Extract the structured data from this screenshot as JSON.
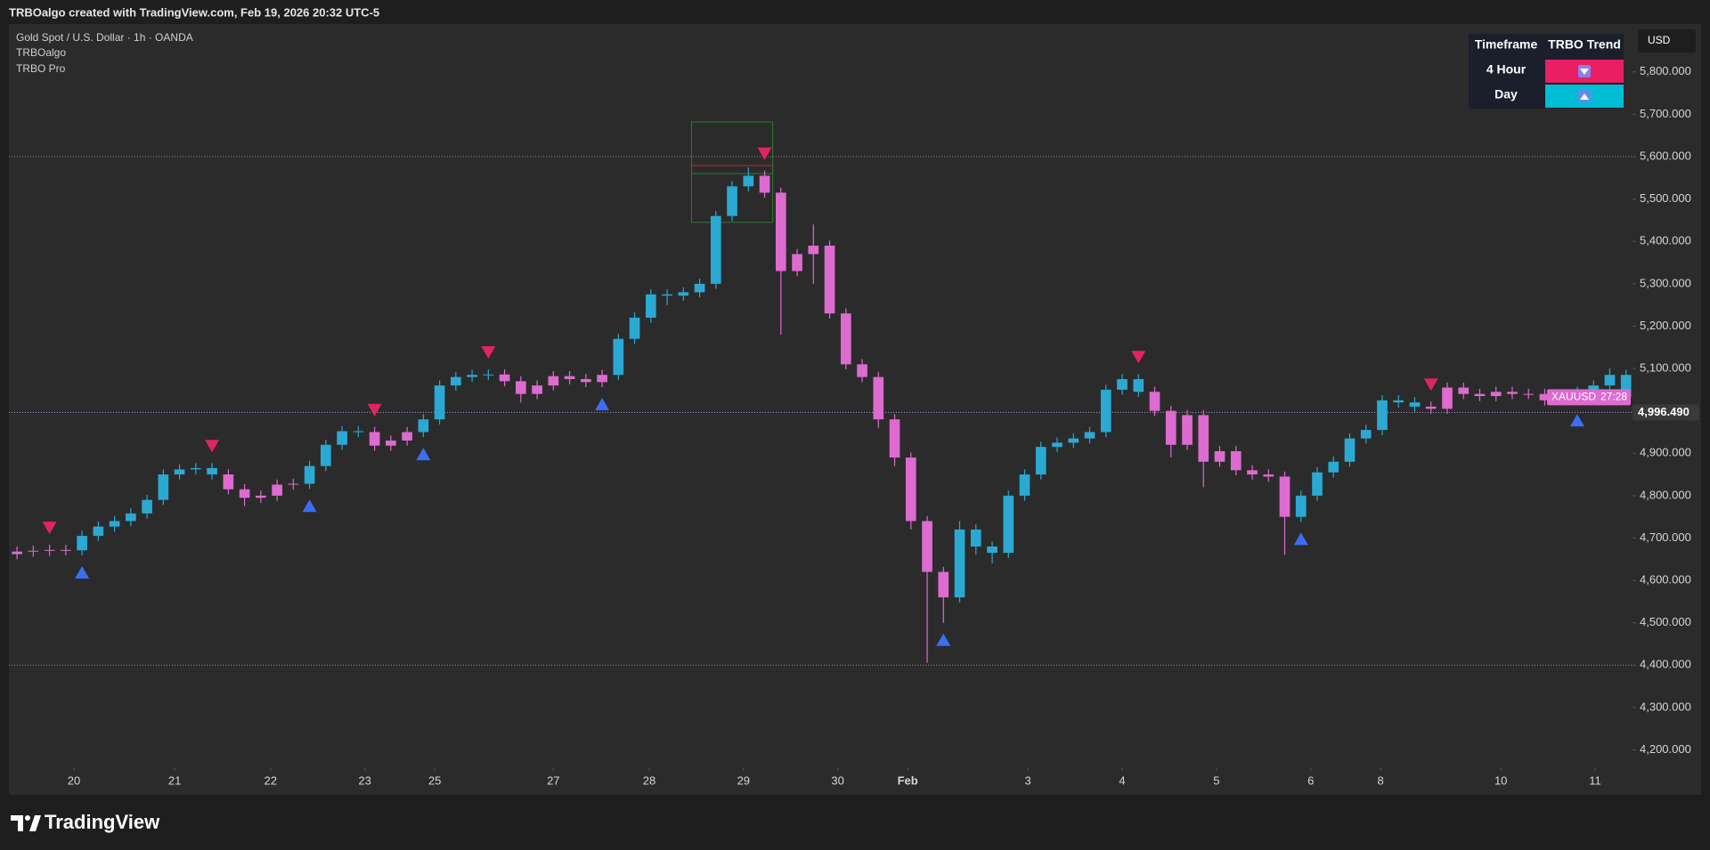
{
  "header": {
    "attribution": "TRBOalgo created with TradingView.com, Feb 19, 2026 20:32 UTC-5",
    "brand": "TradingView"
  },
  "legend": {
    "symbol": "Gold Spot / U.S. Dollar · 1h · OANDA",
    "indicators": [
      "TRBOalgo",
      "TRBO Pro"
    ]
  },
  "table": {
    "header": [
      "Timeframe",
      "TRBO Trend"
    ],
    "rows": [
      {
        "timeframe": "4 Hour",
        "color": "#e91e63"
      },
      {
        "timeframe": "Day",
        "color": "#00bcd4"
      }
    ]
  },
  "chart_data": {
    "type": "candlestick",
    "currency": "USD",
    "ylim": [
      4157,
      5913
    ],
    "xlim": [
      -0.5,
      99.4
    ],
    "yticks": [
      {
        "value": 4200,
        "label": "4,200.000"
      },
      {
        "value": 4300,
        "label": "4,300.000"
      },
      {
        "value": 4400,
        "label": "4,400.000"
      },
      {
        "value": 4500,
        "label": "4,500.000"
      },
      {
        "value": 4600,
        "label": "4,600.000"
      },
      {
        "value": 4700,
        "label": "4,700.000"
      },
      {
        "value": 4800,
        "label": "4,800.000"
      },
      {
        "value": 4900,
        "label": "4,900.000"
      },
      {
        "value": 5000,
        "label": "5,000.000"
      },
      {
        "value": 5100,
        "label": "5,100.000"
      },
      {
        "value": 5200,
        "label": "5,200.000"
      },
      {
        "value": 5300,
        "label": "5,300.000"
      },
      {
        "value": 5400,
        "label": "5,400.000"
      },
      {
        "value": 5500,
        "label": "5,500.000"
      },
      {
        "value": 5600,
        "label": "5,600.000"
      },
      {
        "value": 5700,
        "label": "5,700.000"
      },
      {
        "value": 5800,
        "label": "5,800.000"
      }
    ],
    "xticks": [
      {
        "value": 3.5,
        "label": "20"
      },
      {
        "value": 9.7,
        "label": "21"
      },
      {
        "value": 15.6,
        "label": "22"
      },
      {
        "value": 21.4,
        "label": "23"
      },
      {
        "value": 25.7,
        "label": "25"
      },
      {
        "value": 33.0,
        "label": "27"
      },
      {
        "value": 38.9,
        "label": "28"
      },
      {
        "value": 44.7,
        "label": "29"
      },
      {
        "value": 50.5,
        "label": "30"
      },
      {
        "value": 54.8,
        "label": "Feb"
      },
      {
        "value": 62.2,
        "label": "3"
      },
      {
        "value": 68.0,
        "label": "4"
      },
      {
        "value": 73.8,
        "label": "5"
      },
      {
        "value": 79.6,
        "label": "6"
      },
      {
        "value": 83.9,
        "label": "8"
      },
      {
        "value": 91.3,
        "label": "10"
      },
      {
        "value": 97.1,
        "label": "11"
      }
    ],
    "open": [
      4662,
      4668,
      4670,
      4672,
      4671,
      4705,
      4727,
      4740,
      4758,
      4790,
      4850,
      4862,
      4865,
      4850,
      4815,
      4795,
      4800,
      4826,
      4828,
      4870,
      4920,
      4952,
      4950,
      4918,
      4930,
      4950,
      4980,
      5060,
      5080,
      5085,
      5086,
      5070,
      5040,
      5060,
      5082,
      5075,
      5068,
      5085,
      5170,
      5220,
      5275,
      5272,
      5280,
      5300,
      5460,
      5530,
      5555,
      5515,
      5330,
      5370,
      5390,
      5230,
      5110,
      5080,
      4980,
      4890,
      4740,
      4620,
      4560,
      4720,
      4680,
      4665,
      4800,
      4850,
      4915,
      4925,
      4935,
      4950,
      5050,
      5075,
      5045,
      5000,
      4920,
      4990,
      4880,
      4905,
      4860,
      4850,
      4845,
      4750,
      4800,
      4855,
      4880,
      4935,
      4955,
      5025,
      5020,
      5010,
      5005,
      5055,
      5040,
      5035,
      5045,
      5040,
      5040,
      5025,
      5030,
      5045,
      5060,
      5085
    ],
    "high": [
      4680,
      4682,
      4684,
      4684,
      4717,
      4739,
      4752,
      4770,
      4802,
      4862,
      4874,
      4877,
      4877,
      4862,
      4827,
      4812,
      4838,
      4840,
      4882,
      4932,
      4964,
      4964,
      4962,
      4942,
      4962,
      4992,
      5072,
      5092,
      5097,
      5098,
      5098,
      5082,
      5072,
      5094,
      5094,
      5087,
      5097,
      5182,
      5232,
      5287,
      5287,
      5292,
      5312,
      5472,
      5542,
      5575,
      5567,
      5527,
      5382,
      5440,
      5402,
      5242,
      5122,
      5092,
      4992,
      4902,
      4752,
      4632,
      4740,
      4732,
      4692,
      4812,
      4862,
      4927,
      4937,
      4947,
      4962,
      5062,
      5087,
      5087,
      5057,
      5012,
      5002,
      5002,
      4917,
      4917,
      4872,
      4862,
      4857,
      4812,
      4867,
      4892,
      4947,
      4967,
      5037,
      5037,
      5032,
      5022,
      5067,
      5067,
      5052,
      5057,
      5057,
      5052,
      5052,
      5042,
      5057,
      5072,
      5100,
      5097
    ],
    "low": [
      4650,
      4656,
      4658,
      4659,
      4659,
      4693,
      4715,
      4728,
      4746,
      4778,
      4838,
      4850,
      4838,
      4803,
      4775,
      4783,
      4788,
      4814,
      4816,
      4858,
      4908,
      4938,
      4906,
      4906,
      4918,
      4938,
      4968,
      5048,
      5068,
      5073,
      5058,
      5020,
      5028,
      5048,
      5063,
      5056,
      5056,
      5073,
      5158,
      5208,
      5250,
      5260,
      5268,
      5288,
      5448,
      5518,
      5503,
      5180,
      5318,
      5300,
      5218,
      5098,
      5068,
      4960,
      4870,
      4720,
      4406,
      4500,
      4548,
      4660,
      4640,
      4653,
      4788,
      4838,
      4903,
      4913,
      4923,
      4938,
      5038,
      5033,
      4988,
      4890,
      4908,
      4820,
      4868,
      4848,
      4838,
      4833,
      4660,
      4738,
      4788,
      4843,
      4868,
      4923,
      4943,
      5008,
      4998,
      4993,
      4993,
      5028,
      5023,
      5023,
      5028,
      5028,
      5013,
      5013,
      5018,
      5033,
      5048,
      5020
    ],
    "close": [
      4668,
      4670,
      4672,
      4671,
      4705,
      4727,
      4740,
      4758,
      4790,
      4850,
      4862,
      4865,
      4850,
      4815,
      4795,
      4800,
      4826,
      4828,
      4870,
      4920,
      4952,
      4950,
      4918,
      4930,
      4950,
      4980,
      5060,
      5080,
      5085,
      5086,
      5070,
      5040,
      5060,
      5082,
      5075,
      5068,
      5085,
      5170,
      5220,
      5275,
      5272,
      5280,
      5300,
      5460,
      5530,
      5555,
      5515,
      5330,
      5370,
      5390,
      5230,
      5110,
      5080,
      4980,
      4890,
      4740,
      4620,
      4560,
      4720,
      4680,
      4665,
      4800,
      4850,
      4915,
      4925,
      4935,
      4950,
      5050,
      5075,
      5045,
      5000,
      4920,
      4990,
      4880,
      4905,
      4860,
      4850,
      4845,
      4750,
      4800,
      4855,
      4880,
      4935,
      4955,
      5025,
      5020,
      5010,
      5005,
      5055,
      5040,
      5035,
      5045,
      5040,
      5040,
      5025,
      5030,
      5045,
      5060,
      5085,
      5032
    ],
    "trend_segments": [
      {
        "from": 0,
        "to": 3,
        "color": "#dd6bd0"
      },
      {
        "from": 4,
        "to": 12,
        "color": "#2ba9d2"
      },
      {
        "from": 13,
        "to": 17,
        "color": "#dd6bd0"
      },
      {
        "from": 18,
        "to": 21,
        "color": "#2ba9d2"
      },
      {
        "from": 22,
        "to": 24,
        "color": "#dd6bd0"
      },
      {
        "from": 25,
        "to": 29,
        "color": "#2ba9d2"
      },
      {
        "from": 30,
        "to": 36,
        "color": "#dd6bd0"
      },
      {
        "from": 37,
        "to": 45,
        "color": "#2ba9d2"
      },
      {
        "from": 46,
        "to": 57,
        "color": "#dd6bd0"
      },
      {
        "from": 58,
        "to": 69,
        "color": "#2ba9d2"
      },
      {
        "from": 70,
        "to": 78,
        "color": "#dd6bd0"
      },
      {
        "from": 79,
        "to": 86,
        "color": "#2ba9d2"
      },
      {
        "from": 87,
        "to": 95,
        "color": "#dd6bd0"
      },
      {
        "from": 96,
        "to": 99,
        "color": "#2ba9d2"
      }
    ],
    "signals": {
      "buy": [
        4,
        18,
        25,
        36,
        57,
        79,
        96
      ],
      "sell": [
        2,
        12,
        22,
        29,
        46,
        69,
        87
      ],
      "buy_color": "#3d6df2",
      "sell_color": "#e0245e"
    },
    "levels": [
      5600,
      4400
    ],
    "zone": {
      "x": [
        41.5,
        46.5
      ],
      "levels": [
        5682,
        5579,
        5560,
        5445
      ]
    },
    "last_price": {
      "value": 4996.49,
      "label": "4,996.490"
    },
    "price_label": {
      "symbol": "XAUUSD",
      "countdown": "27:28",
      "color": "#dd6bd0"
    }
  }
}
